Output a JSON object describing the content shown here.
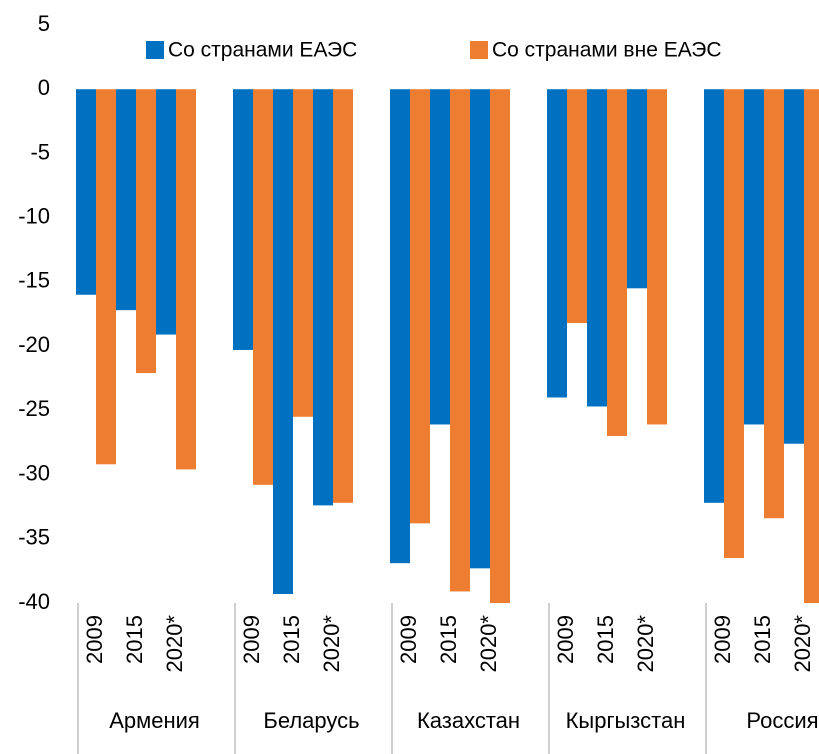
{
  "chart_data": {
    "type": "bar",
    "groups": [
      "Армения",
      "Беларусь",
      "Казахстан",
      "Кыргызстан",
      "Россия"
    ],
    "categories": [
      "2009",
      "2015",
      "2020*",
      "2009",
      "2015",
      "2020*",
      "2009",
      "2015",
      "2020*",
      "2009",
      "2015",
      "2020*",
      "2009",
      "2015",
      "2020*"
    ],
    "series": [
      {
        "name": "Со странами ЕАЭС",
        "color": "#0070c0",
        "values": [
          -16.0,
          -17.2,
          -19.1,
          -20.3,
          -39.3,
          -32.4,
          -36.9,
          -26.1,
          -37.3,
          -24.0,
          -24.7,
          -15.5,
          -32.2,
          -26.1,
          -27.6
        ]
      },
      {
        "name": "Со странами вне ЕАЭС",
        "color": "#ed7d31",
        "values": [
          -29.2,
          -22.1,
          -29.6,
          -30.8,
          -25.5,
          -32.2,
          -33.8,
          -39.1,
          -40,
          -18.2,
          -27.0,
          -26.1,
          -36.5,
          -33.4,
          -40
        ]
      }
    ],
    "ylim": [
      -40,
      5
    ],
    "yticks": [
      5,
      0,
      -5,
      -10,
      -15,
      -20,
      -25,
      -30,
      -35,
      -40
    ],
    "grid": false
  }
}
